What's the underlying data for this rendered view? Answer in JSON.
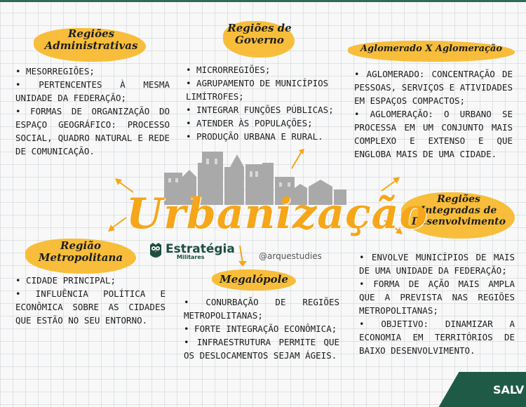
{
  "sections": {
    "admin": {
      "title_line1": "Regiões",
      "title_line2": "Administrativas",
      "items": [
        "• Mesorregiões;",
        "• Pertencentes à mesma Unidade da Federação;",
        "• Formas de organização do espaço geográfico: processo social, quadro natural e rede de comunicação."
      ]
    },
    "governo": {
      "title_line1": "Regiões de",
      "title_line2": "Governo",
      "items": [
        "• Microrregiões;",
        "• Agrupamento de municípios limítrofes;",
        "• Integrar funções públicas;",
        "• Atender às populações;",
        "• Produção urbana e rural."
      ]
    },
    "aglomerado": {
      "title": "Aglomerado X Aglomeração",
      "items": [
        "• Aglomerado: concentração de pessoas, serviços e atividades em espaços compactos;",
        "• Aglomeração: o urbano se processa em um conjunto mais complexo e extenso e que engloba mais de uma cidade."
      ]
    },
    "integradas": {
      "title_line1": "Regiões",
      "title_line2": "Integradas de",
      "title_line3": "Desenvolvimento",
      "items": [
        "• Envolve municípios de mais de uma Unidade da Federação;",
        "• Forma de ação mais ampla que a prevista nas regiões metropolitanas;",
        "• Objetivo: dinamizar a economia em territórios de baixo desenvolvimento."
      ]
    },
    "metropolitana": {
      "title_line1": "Região",
      "title_line2": "Metropolitana",
      "items": [
        "• Cidade principal;",
        "• Influência política e econômica sobre as cidades que estão no seu entorno."
      ]
    },
    "megalopole": {
      "title": "Megalópole",
      "items": [
        "• Conurbação de regiões metropolitanas;",
        "• Forte integração econômica;",
        "• Infraestrutura permite que os deslocamentos sejam ágeis."
      ]
    }
  },
  "center": {
    "title": "Urbanização",
    "brand_name": "Estratégia",
    "brand_sub": "Militares",
    "handle": "@arquestudies"
  },
  "footer": {
    "text": "SALV"
  },
  "colors": {
    "accent": "#f7b92a",
    "title_orange": "#f6a619",
    "brand_green": "#1d4e3f",
    "buildings": "#a9a9a9"
  },
  "icons": [
    "owl-icon",
    "city-skyline-icon",
    "arrow-icon"
  ]
}
